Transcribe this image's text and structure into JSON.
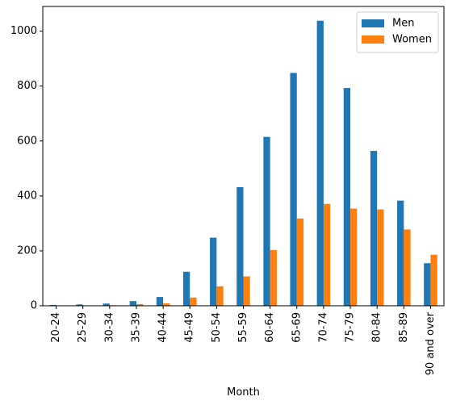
{
  "chart_data": {
    "type": "bar",
    "title": "",
    "xlabel": "Month",
    "ylabel": "",
    "ylim": [
      0,
      1090
    ],
    "yticks": [
      0,
      200,
      400,
      600,
      800,
      1000
    ],
    "grid": false,
    "legend_position": "top-right",
    "categories": [
      "20-24",
      "25-29",
      "30-34",
      "35-39",
      "40-44",
      "45-49",
      "50-54",
      "55-59",
      "60-64",
      "65-69",
      "70-74",
      "75-79",
      "80-84",
      "85-89",
      "90 and over"
    ],
    "series": [
      {
        "name": "Men",
        "color": "#1f77b4",
        "values": [
          3,
          5,
          8,
          17,
          32,
          124,
          248,
          432,
          615,
          848,
          1038,
          793,
          564,
          383,
          155
        ]
      },
      {
        "name": "Women",
        "color": "#ff7f0e",
        "values": [
          1,
          1,
          2,
          6,
          9,
          30,
          71,
          107,
          203,
          318,
          371,
          354,
          351,
          278,
          186
        ]
      }
    ]
  }
}
